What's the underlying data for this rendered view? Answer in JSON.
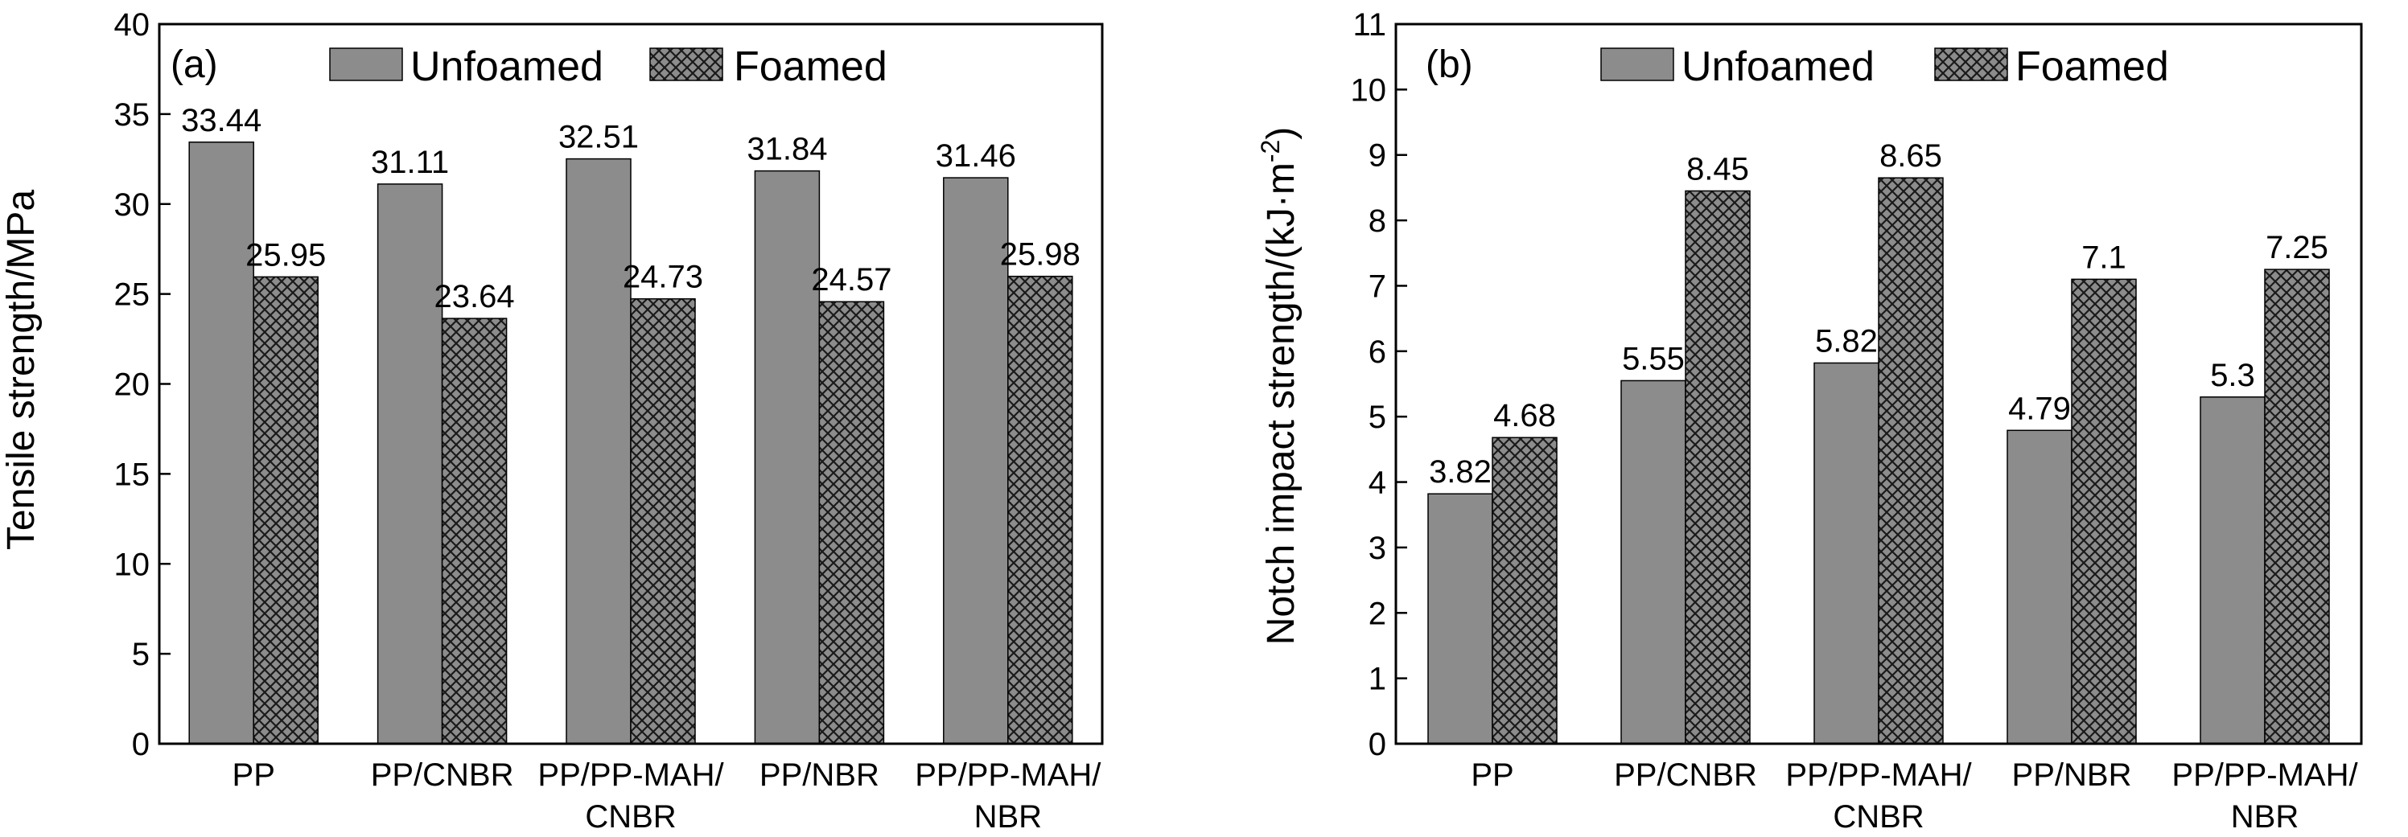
{
  "chart_data": [
    {
      "type": "bar",
      "panel": "(a)",
      "categories": [
        [
          "PP"
        ],
        [
          "PP/CNBR"
        ],
        [
          "PP/PP-MAH/",
          "CNBR"
        ],
        [
          "PP/NBR"
        ],
        [
          "PP/PP-MAH/",
          "NBR"
        ]
      ],
      "series": [
        {
          "name": "Unfoamed",
          "values": [
            33.44,
            31.11,
            32.51,
            31.84,
            31.46
          ],
          "labels": [
            "33.44",
            "31.11",
            "32.51",
            "31.84",
            "31.46"
          ]
        },
        {
          "name": "Foamed",
          "values": [
            25.95,
            23.64,
            24.73,
            24.57,
            25.98
          ],
          "labels": [
            "25.95",
            "23.64",
            "24.73",
            "24.57",
            "25.98"
          ]
        }
      ],
      "ylabel": "Tensile strength/MPa",
      "xlabel": "",
      "ylim": [
        0,
        40
      ],
      "yticks": [
        "0",
        "5",
        "10",
        "15",
        "20",
        "25",
        "30",
        "35",
        "40"
      ],
      "legend": "top"
    },
    {
      "type": "bar",
      "panel": "(b)",
      "categories": [
        [
          "PP"
        ],
        [
          "PP/CNBR"
        ],
        [
          "PP/PP-MAH/",
          "CNBR"
        ],
        [
          "PP/NBR"
        ],
        [
          "PP/PP-MAH/",
          "NBR"
        ]
      ],
      "series": [
        {
          "name": "Unfoamed",
          "values": [
            3.82,
            5.55,
            5.82,
            4.79,
            5.3
          ],
          "labels": [
            "3.82",
            "5.55",
            "5.82",
            "4.79",
            "5.3"
          ]
        },
        {
          "name": "Foamed",
          "values": [
            4.68,
            8.45,
            8.65,
            7.1,
            7.25
          ],
          "labels": [
            "4.68",
            "8.45",
            "8.65",
            "7.1",
            "7.25"
          ]
        }
      ],
      "ylabel": "Notch impact strength/(kJ·m",
      "ylabel_sup": "-2",
      "ylabel_end": ")",
      "xlabel": "",
      "ylim": [
        0,
        11
      ],
      "yticks": [
        "0",
        "1",
        "2",
        "3",
        "4",
        "5",
        "6",
        "7",
        "8",
        "9",
        "10",
        "11"
      ],
      "legend": "top"
    }
  ],
  "colors": {
    "unfoamed": "#8c8c8c",
    "foamed_bg": "#8c8c8c",
    "foamed_hatch": "#1a1a1a",
    "axis": "#000000"
  }
}
